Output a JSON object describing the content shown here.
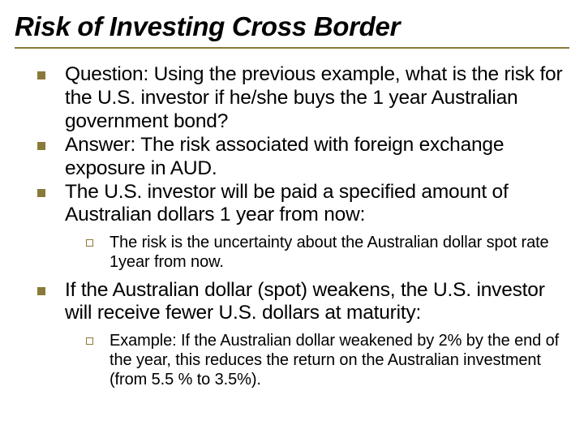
{
  "title": "Risk of Investing Cross Border",
  "colors": {
    "title_underline": "#8a7a3a",
    "bullet_l1_fill": "#8a7a3a",
    "bullet_l2_border": "#8a7a3a",
    "text": "#000000"
  },
  "bullets": [
    {
      "level": 1,
      "text": "Question: Using the previous example, what is the risk for the U.S. investor if he/she buys the 1 year Australian government bond?"
    },
    {
      "level": 1,
      "text": "Answer: The risk associated with foreign exchange exposure in AUD."
    },
    {
      "level": 1,
      "text": "The U.S. investor will be paid a specified amount of Australian dollars 1 year from now:"
    },
    {
      "level": 2,
      "text": "The risk is the uncertainty about the Australian dollar spot rate 1year from now."
    },
    {
      "level": 1,
      "text": "If the Australian dollar (spot) weakens, the U.S. investor will receive fewer U.S. dollars at maturity:"
    },
    {
      "level": 2,
      "text": "Example: If the Australian dollar weakened by 2% by the end of the year, this reduces the return on the Australian investment (from 5.5 % to 3.5%)."
    }
  ]
}
